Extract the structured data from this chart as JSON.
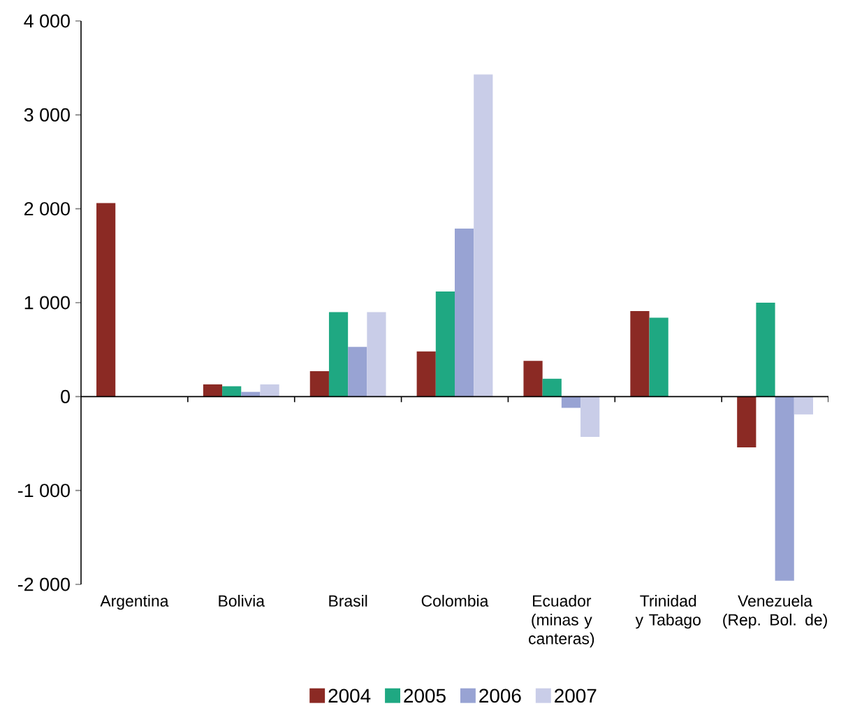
{
  "chart_data": {
    "type": "bar",
    "categories": [
      "Argentina",
      "Bolivia",
      "Brasil",
      "Colombia",
      "Ecuador (minas y canteras)",
      "Trinidad y Tabago",
      "Venezuela (Rep. Bol. de)"
    ],
    "series": [
      {
        "name": "2004",
        "color": "#8b2a24",
        "values": [
          2060,
          130,
          270,
          480,
          380,
          910,
          -540
        ]
      },
      {
        "name": "2005",
        "color": "#1fa882",
        "values": [
          null,
          110,
          900,
          1120,
          190,
          840,
          1000
        ]
      },
      {
        "name": "2006",
        "color": "#98a3d3",
        "values": [
          null,
          50,
          530,
          1790,
          -120,
          null,
          -1960
        ]
      },
      {
        "name": "2007",
        "color": "#c9cde8",
        "values": [
          null,
          130,
          900,
          3430,
          -430,
          null,
          -190
        ]
      }
    ],
    "ylim": [
      -2000,
      4000
    ],
    "yticks": [
      {
        "value": -2000,
        "label": "-2 000"
      },
      {
        "value": -1000,
        "label": "-1 000"
      },
      {
        "value": 0,
        "label": "0"
      },
      {
        "value": 1000,
        "label": "1 000"
      },
      {
        "value": 2000,
        "label": "2 000"
      },
      {
        "value": 3000,
        "label": "3 000"
      },
      {
        "value": 4000,
        "label": "4 000"
      }
    ],
    "legend": "bottom"
  }
}
